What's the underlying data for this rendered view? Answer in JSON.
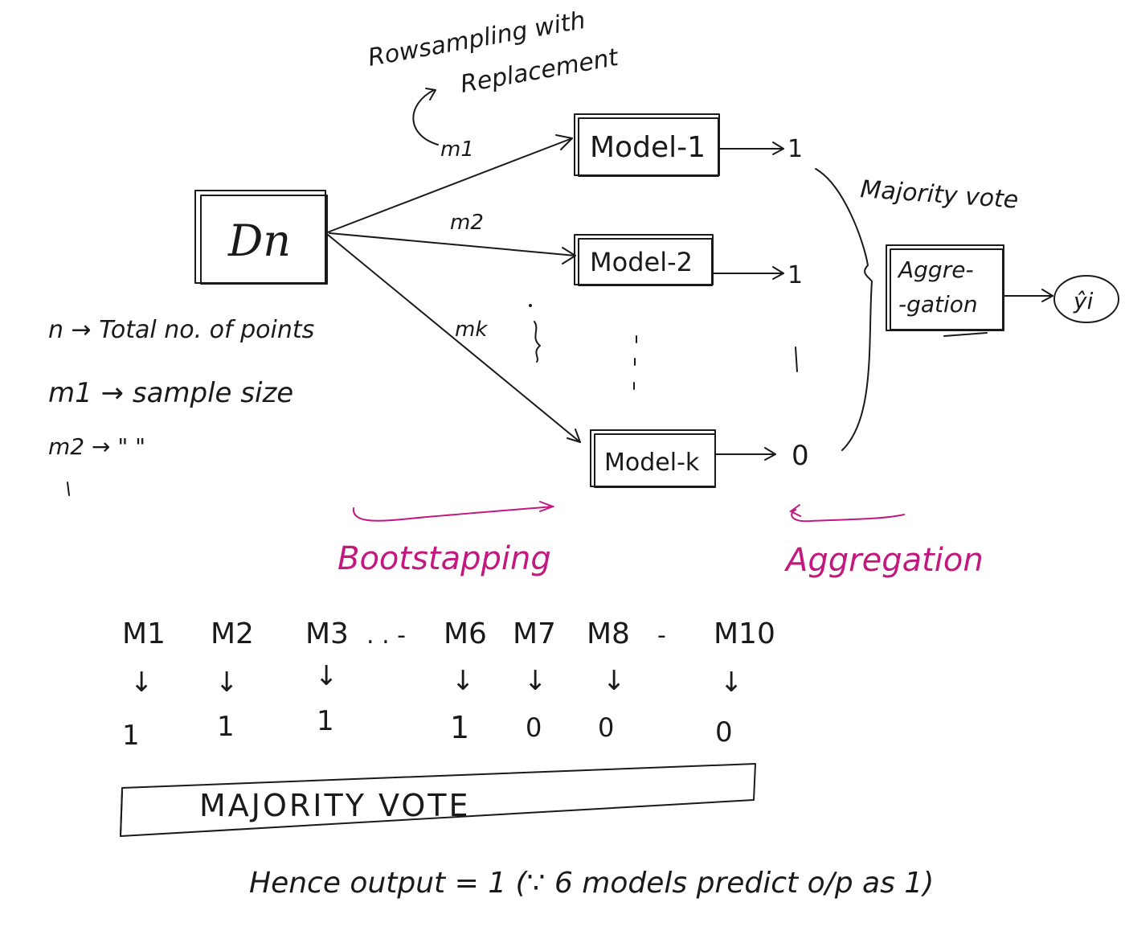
{
  "top_note": {
    "line1": "Rowsampling with",
    "line2": "Replacement"
  },
  "dataset": {
    "label": "Dn"
  },
  "samples": {
    "m1": "m1",
    "m2": "m2",
    "mk": "mk"
  },
  "models": [
    {
      "label": "Model-1",
      "output": "1"
    },
    {
      "label": "Model-2",
      "output": "1"
    },
    {
      "label": "Model-k",
      "output": "0"
    }
  ],
  "majority_vote_label": "Majority vote",
  "aggregation_box": {
    "line1": "Aggre-",
    "line2": "-gation"
  },
  "final_output": "ŷi",
  "legend_notes": {
    "n": "n → Total no. of points",
    "m1": "m1 → sample size",
    "m2": "m2 →  \"       \""
  },
  "phases": {
    "bootstrapping": "Bootstapping",
    "aggregation": "Aggregation"
  },
  "example": {
    "headers": [
      "M1",
      "M2",
      "M3",
      "M6",
      "M7",
      "M8",
      "M10"
    ],
    "ellipsis": ". . -",
    "ellipsis2": "-",
    "arrow": "↓",
    "values": [
      "1",
      "1",
      "1",
      "1",
      "0",
      "0",
      "0"
    ]
  },
  "majority_box_label": "MAJORITY VOTE",
  "conclusion": "Hence output = 1 (∵ 6 models predict o/p as 1)"
}
